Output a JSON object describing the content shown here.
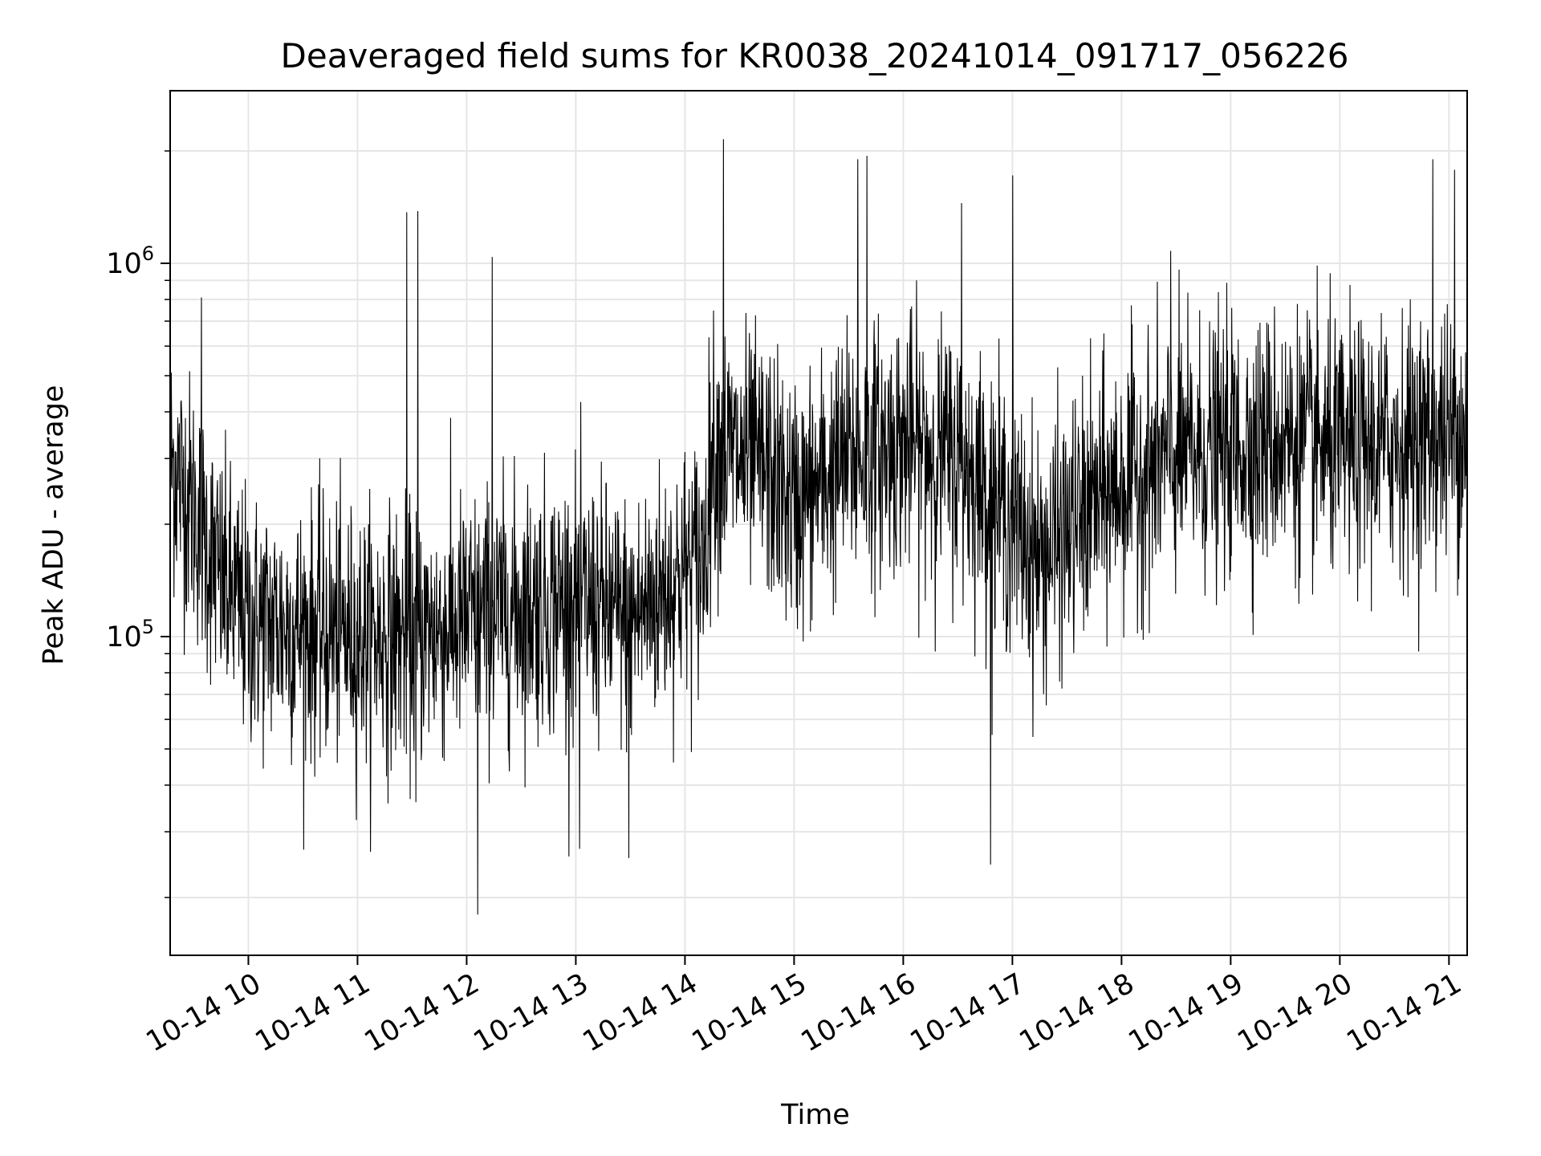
{
  "chart_data": {
    "type": "line",
    "title": "Deaveraged field sums for KR0038_20241014_091717_056226",
    "xlabel": "Time",
    "ylabel": "Peak ADU - average",
    "y_scale": "log",
    "x_range": [
      "2024-10-14 09:17",
      "2024-10-14 21:10"
    ],
    "ylim": [
      14000,
      2900000
    ],
    "grid": true,
    "line_color": "#000000",
    "grid_color": "#e6e6e6",
    "x_ticks": [
      {
        "time": "2024-10-14 10:00",
        "label": "10-14 10"
      },
      {
        "time": "2024-10-14 11:00",
        "label": "10-14 11"
      },
      {
        "time": "2024-10-14 12:00",
        "label": "10-14 12"
      },
      {
        "time": "2024-10-14 13:00",
        "label": "10-14 13"
      },
      {
        "time": "2024-10-14 14:00",
        "label": "10-14 14"
      },
      {
        "time": "2024-10-14 15:00",
        "label": "10-14 15"
      },
      {
        "time": "2024-10-14 16:00",
        "label": "10-14 16"
      },
      {
        "time": "2024-10-14 17:00",
        "label": "10-14 17"
      },
      {
        "time": "2024-10-14 18:00",
        "label": "10-14 18"
      },
      {
        "time": "2024-10-14 19:00",
        "label": "10-14 19"
      },
      {
        "time": "2024-10-14 20:00",
        "label": "10-14 20"
      },
      {
        "time": "2024-10-14 21:00",
        "label": "10-14 21"
      }
    ],
    "y_major_ticks": [
      {
        "value": 100000,
        "base": "10",
        "exp": "5"
      },
      {
        "value": 1000000,
        "base": "10",
        "exp": "6"
      }
    ],
    "series": [
      {
        "x": [
          "2024-10-14 09:17",
          "2024-10-14 09:30",
          "2024-10-14 09:45",
          "2024-10-14 10:00",
          "2024-10-14 10:30",
          "2024-10-14 11:00",
          "2024-10-14 11:30",
          "2024-10-14 12:00",
          "2024-10-14 12:30",
          "2024-10-14 13:00",
          "2024-10-14 13:30",
          "2024-10-14 14:00",
          "2024-10-14 14:10",
          "2024-10-14 14:15",
          "2024-10-14 14:45",
          "2024-10-14 15:00",
          "2024-10-14 15:30",
          "2024-10-14 16:00",
          "2024-10-14 16:30",
          "2024-10-14 16:55",
          "2024-10-14 17:15",
          "2024-10-14 17:30",
          "2024-10-14 18:00",
          "2024-10-14 18:30",
          "2024-10-14 19:00",
          "2024-10-14 19:30",
          "2024-10-14 20:00",
          "2024-10-14 20:30",
          "2024-10-14 21:00",
          "2024-10-14 21:10"
        ],
        "values": [
          300000,
          220000,
          140000,
          110000,
          105000,
          100000,
          100000,
          110000,
          120000,
          125000,
          110000,
          150000,
          160000,
          320000,
          280000,
          220000,
          300000,
          330000,
          300000,
          220000,
          160000,
          190000,
          260000,
          300000,
          320000,
          340000,
          310000,
          330000,
          340000,
          380000
        ]
      }
    ],
    "spikes": [
      {
        "x": "2024-10-14 09:34",
        "value": 810000
      },
      {
        "x": "2024-10-14 11:27",
        "value": 1370000
      },
      {
        "x": "2024-10-14 11:33",
        "value": 1380000
      },
      {
        "x": "2024-10-14 11:32",
        "value": 36000
      },
      {
        "x": "2024-10-14 12:06",
        "value": 18000
      },
      {
        "x": "2024-10-14 12:14",
        "value": 1040000
      },
      {
        "x": "2024-10-14 13:02",
        "value": 27000
      },
      {
        "x": "2024-10-14 13:29",
        "value": 25500
      },
      {
        "x": "2024-10-14 14:21",
        "value": 2150000
      },
      {
        "x": "2024-10-14 15:35",
        "value": 1900000
      },
      {
        "x": "2024-10-14 15:40",
        "value": 1940000
      },
      {
        "x": "2024-10-14 16:32",
        "value": 1450000
      },
      {
        "x": "2024-10-14 16:48",
        "value": 24500
      },
      {
        "x": "2024-10-14 17:00",
        "value": 1720000
      },
      {
        "x": "2024-10-14 18:27",
        "value": 1080000
      },
      {
        "x": "2024-10-14 20:51",
        "value": 1900000
      },
      {
        "x": "2024-10-14 21:03",
        "value": 1780000
      }
    ]
  }
}
